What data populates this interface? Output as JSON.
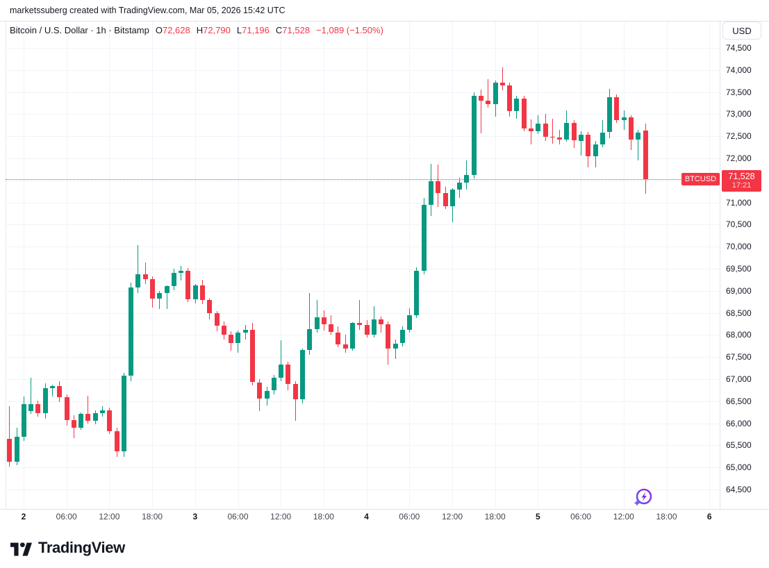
{
  "attribution": "marketssuberg created with TradingView.com, Mar 05, 2026 15:42 UTC",
  "legend": {
    "symbol_title": "Bitcoin / U.S. Dollar · 1h · Bitstamp",
    "ohlc": [
      {
        "label": "O",
        "value": "72,628"
      },
      {
        "label": "H",
        "value": "72,790"
      },
      {
        "label": "L",
        "value": "71,196"
      },
      {
        "label": "C",
        "value": "71,528"
      }
    ],
    "change": "−1,089 (−1.50%)"
  },
  "price_axis": {
    "currency_button": "USD",
    "labels": [
      "74,500",
      "74,000",
      "73,500",
      "73,000",
      "72,500",
      "72,000",
      "71,500",
      "71,000",
      "70,500",
      "70,000",
      "69,500",
      "69,000",
      "68,500",
      "68,000",
      "67,500",
      "67,000",
      "66,500",
      "66,000",
      "65,500",
      "65,000",
      "64,500"
    ],
    "last_price_box": {
      "price": "71,528",
      "time": "17:21"
    },
    "symbol_tag": "BTCUSD"
  },
  "time_axis": {
    "labels": [
      {
        "text": "2",
        "day": true
      },
      {
        "text": "06:00"
      },
      {
        "text": "12:00"
      },
      {
        "text": "18:00"
      },
      {
        "text": "3",
        "day": true
      },
      {
        "text": "06:00"
      },
      {
        "text": "12:00"
      },
      {
        "text": "18:00"
      },
      {
        "text": "4",
        "day": true
      },
      {
        "text": "06:00"
      },
      {
        "text": "12:00"
      },
      {
        "text": "18:00"
      },
      {
        "text": "5",
        "day": true
      },
      {
        "text": "06:00"
      },
      {
        "text": "12:00"
      },
      {
        "text": "18:00"
      },
      {
        "text": "6",
        "day": true
      }
    ]
  },
  "footer": {
    "brand": "TradingView"
  },
  "colors": {
    "up": "#089981",
    "down": "#f23645",
    "price_line": "#f23645",
    "grid": "#f0f3fa",
    "flash_icon": "#8b3dff"
  },
  "chart_data": {
    "type": "candlestick",
    "title": "Bitcoin / U.S. Dollar",
    "symbol": "BTCUSD",
    "exchange": "Bitstamp",
    "interval": "1h",
    "last": {
      "open": 72628,
      "high": 72790,
      "low": 71196,
      "close": 71528,
      "change": -1089,
      "change_pct": -1.5
    },
    "current_price": 71528,
    "current_price_time": "17:21",
    "ylim": [
      64500,
      74500
    ],
    "y_step": 500,
    "grid": true,
    "candles": [
      [
        65650,
        66390,
        65020,
        65130
      ],
      [
        65130,
        65900,
        65050,
        65690
      ],
      [
        65690,
        66600,
        65600,
        66440
      ],
      [
        66280,
        67030,
        66220,
        66440
      ],
      [
        66440,
        66520,
        66150,
        66230
      ],
      [
        66230,
        66900,
        66100,
        66800
      ],
      [
        66800,
        66880,
        66600,
        66840
      ],
      [
        66840,
        66950,
        66480,
        66590
      ],
      [
        66590,
        66650,
        65950,
        66070
      ],
      [
        66070,
        66180,
        65670,
        65900
      ],
      [
        65900,
        66250,
        65850,
        66210
      ],
      [
        66210,
        66620,
        66000,
        66050
      ],
      [
        66050,
        66300,
        65980,
        66230
      ],
      [
        66230,
        66380,
        66150,
        66300
      ],
      [
        66300,
        66350,
        65750,
        65820
      ],
      [
        65820,
        65900,
        65240,
        65370
      ],
      [
        65370,
        67140,
        65240,
        67080
      ],
      [
        67080,
        69190,
        66950,
        69070
      ],
      [
        69070,
        70030,
        68950,
        69380
      ],
      [
        69380,
        69650,
        69150,
        69260
      ],
      [
        69260,
        69330,
        68620,
        68820
      ],
      [
        68820,
        68990,
        68580,
        68950
      ],
      [
        68950,
        69120,
        68590,
        69110
      ],
      [
        69110,
        69500,
        69020,
        69400
      ],
      [
        69400,
        69560,
        69230,
        69450
      ],
      [
        69450,
        69520,
        68750,
        68810
      ],
      [
        68810,
        69150,
        68720,
        69130
      ],
      [
        69130,
        69250,
        68700,
        68790
      ],
      [
        68790,
        68830,
        68350,
        68490
      ],
      [
        68490,
        68540,
        68080,
        68210
      ],
      [
        68210,
        68300,
        67900,
        68010
      ],
      [
        68010,
        68090,
        67650,
        67820
      ],
      [
        67820,
        68100,
        67600,
        68060
      ],
      [
        68060,
        68230,
        67900,
        68120
      ],
      [
        68120,
        68270,
        66850,
        66930
      ],
      [
        66930,
        67000,
        66270,
        66560
      ],
      [
        66560,
        66820,
        66400,
        66740
      ],
      [
        66740,
        67100,
        66650,
        67030
      ],
      [
        67030,
        67880,
        66950,
        67330
      ],
      [
        67330,
        67400,
        66750,
        66890
      ],
      [
        66890,
        66950,
        66060,
        66540
      ],
      [
        66540,
        67700,
        66450,
        67660
      ],
      [
        67660,
        68950,
        67550,
        68130
      ],
      [
        68130,
        68800,
        68050,
        68400
      ],
      [
        68400,
        68560,
        68100,
        68240
      ],
      [
        68240,
        68450,
        68000,
        68060
      ],
      [
        68060,
        68200,
        67720,
        67790
      ],
      [
        67790,
        68000,
        67600,
        67690
      ],
      [
        67690,
        68290,
        67640,
        68270
      ],
      [
        68270,
        68790,
        68120,
        68220
      ],
      [
        68220,
        68330,
        67950,
        68010
      ],
      [
        68010,
        68650,
        67940,
        68350
      ],
      [
        68350,
        68420,
        68050,
        68240
      ],
      [
        68240,
        68300,
        67330,
        67690
      ],
      [
        67690,
        67900,
        67450,
        67810
      ],
      [
        67810,
        68190,
        67740,
        68120
      ],
      [
        68120,
        68610,
        68050,
        68450
      ],
      [
        68450,
        69540,
        68380,
        69460
      ],
      [
        69460,
        71100,
        69380,
        70950
      ],
      [
        70950,
        71870,
        70700,
        71480
      ],
      [
        71480,
        71860,
        70900,
        71210
      ],
      [
        71210,
        71350,
        70850,
        70920
      ],
      [
        70920,
        71330,
        70550,
        71300
      ],
      [
        71300,
        71560,
        71100,
        71450
      ],
      [
        71450,
        71960,
        71290,
        71620
      ],
      [
        71620,
        73500,
        71550,
        73410
      ],
      [
        73410,
        73560,
        72560,
        73300
      ],
      [
        73300,
        73800,
        73150,
        73220
      ],
      [
        73220,
        73760,
        72950,
        73710
      ],
      [
        73710,
        74060,
        73540,
        73650
      ],
      [
        73650,
        73720,
        72950,
        73070
      ],
      [
        73070,
        73410,
        72900,
        73360
      ],
      [
        73360,
        73420,
        72610,
        72680
      ],
      [
        72680,
        72880,
        72320,
        72620
      ],
      [
        72620,
        72980,
        72550,
        72790
      ],
      [
        72790,
        73000,
        72400,
        72490
      ],
      [
        72490,
        72900,
        72330,
        72470
      ],
      [
        72470,
        72650,
        72310,
        72430
      ],
      [
        72430,
        73090,
        72380,
        72800
      ],
      [
        72800,
        72860,
        72240,
        72400
      ],
      [
        72400,
        72620,
        72060,
        72540
      ],
      [
        72540,
        72600,
        71800,
        72040
      ],
      [
        72040,
        72390,
        71790,
        72320
      ],
      [
        72320,
        72870,
        72250,
        72590
      ],
      [
        72590,
        73570,
        72450,
        73380
      ],
      [
        73380,
        73440,
        72800,
        72870
      ],
      [
        72870,
        73090,
        72640,
        72930
      ],
      [
        72930,
        72980,
        72190,
        72430
      ],
      [
        72430,
        72640,
        71950,
        72580
      ],
      [
        72628,
        72790,
        71196,
        71528
      ]
    ]
  }
}
